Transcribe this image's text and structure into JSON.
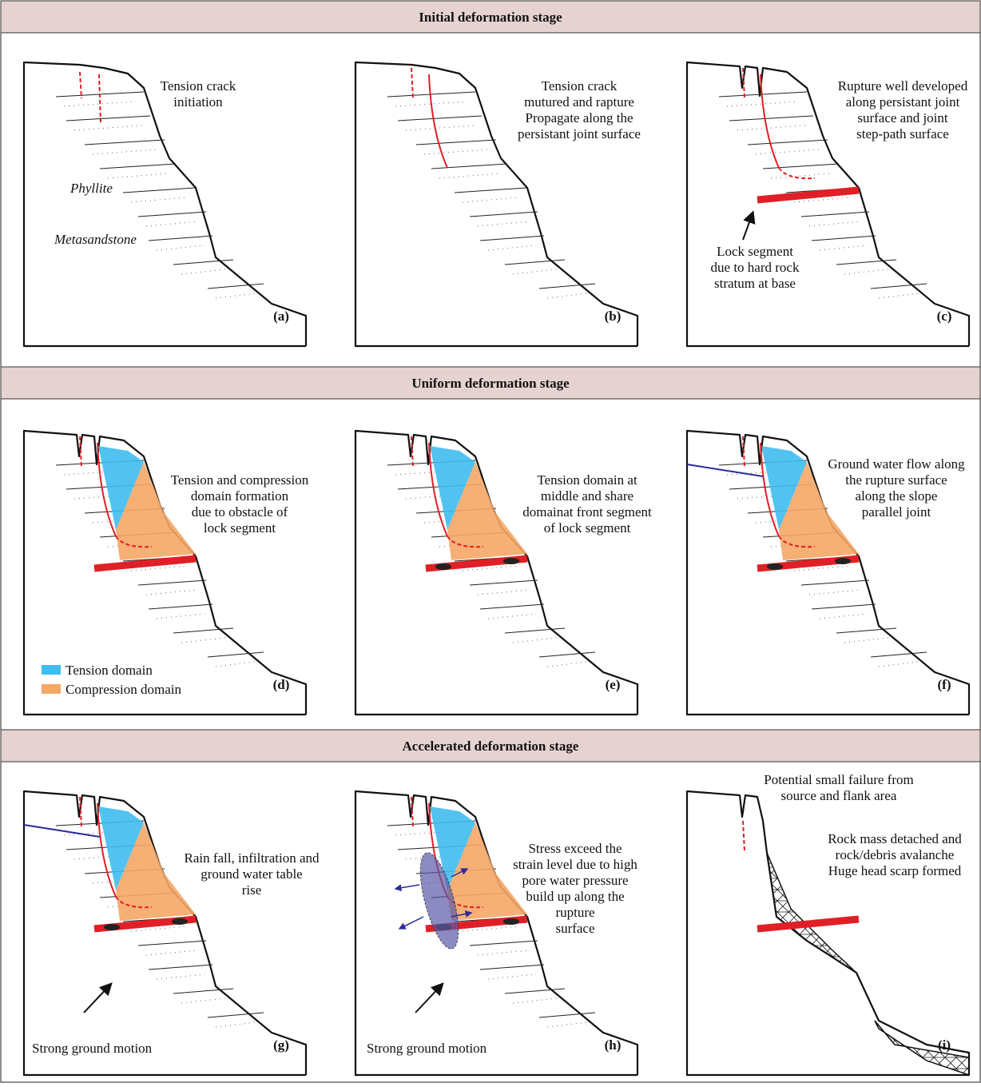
{
  "stages": [
    {
      "title": "Initial deformation stage",
      "panels": [
        {
          "label": "(a)",
          "text": [
            "Tension crack",
            "initiation"
          ],
          "rocks": [
            "Phyllite",
            "Metasandstone"
          ]
        },
        {
          "label": "(b)",
          "text": [
            "Tension crack",
            "mutured and rapture",
            "Propagate along the",
            "persistant joint surface"
          ]
        },
        {
          "label": "(c)",
          "text": [
            "Rupture well developed",
            "along persistant joint",
            "surface and joint",
            "step-path  surface"
          ],
          "note": [
            "Lock segment",
            "due to hard rock",
            "stratum at base"
          ]
        }
      ]
    },
    {
      "title": "Uniform deformation stage",
      "panels": [
        {
          "label": "(d)",
          "text": [
            "Tension and compression",
            "domain formation",
            "due to obstacle of",
            "lock segment"
          ],
          "legend": [
            "Tension domain",
            "Compression domain"
          ]
        },
        {
          "label": "(e)",
          "text": [
            "Tension domain at",
            "middle and share",
            "domainat front segment",
            "of lock segment"
          ]
        },
        {
          "label": "(f)",
          "text": [
            "Ground water flow along",
            "the rupture surface",
            "along the slope",
            "parallel joint"
          ]
        }
      ]
    },
    {
      "title": "Accelerated deformation stage",
      "panels": [
        {
          "label": "(g)",
          "text": [
            "Rain fall, infiltration and",
            "ground water table",
            "rise"
          ],
          "note": [
            "Strong ground motion"
          ]
        },
        {
          "label": "(h)",
          "text": [
            "Stress exceed the",
            "strain level due to high",
            "pore water pressure",
            "build up along the",
            "rupture",
            "surface"
          ],
          "note": [
            "Strong ground motion"
          ]
        },
        {
          "label": "(i)",
          "text": [
            "Potential small failure from",
            "source and flank area"
          ],
          "note": [
            "Rock mass detached and",
            "rock/debris avalanche",
            "Huge head scarp formed"
          ]
        }
      ]
    }
  ]
}
